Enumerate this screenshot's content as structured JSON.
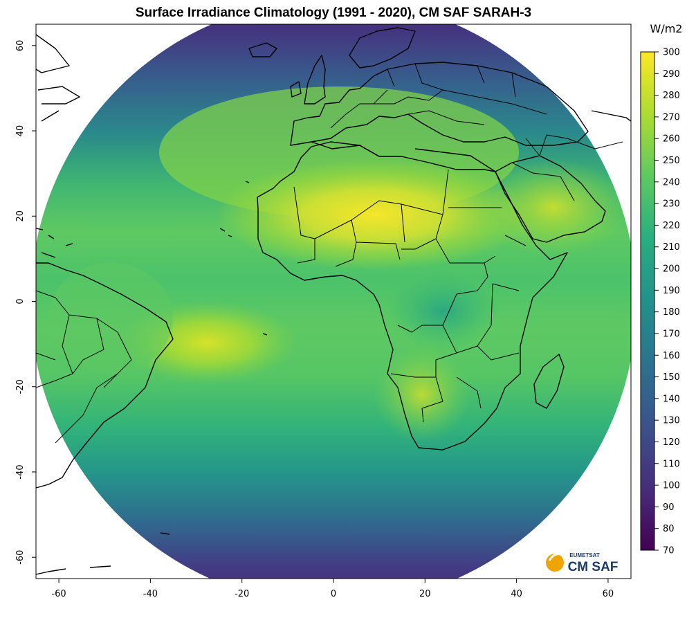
{
  "title": "Surface Irradiance Climatology (1991 - 2020),  CM SAF SARAH-3",
  "map": {
    "x_ticks": [
      "-60",
      "-40",
      "-20",
      "0",
      "20",
      "40",
      "60"
    ],
    "y_ticks": [
      "60",
      "40",
      "20",
      "0",
      "-20",
      "-40",
      "-60"
    ],
    "lon_range": [
      -65,
      65
    ],
    "lat_range": [
      -65,
      65
    ]
  },
  "colorbar": {
    "unit": "W/m2",
    "min": 70,
    "max": 300,
    "labels": [
      "300",
      "290",
      "280",
      "270",
      "260",
      "250",
      "240",
      "230",
      "220",
      "210",
      "200",
      "190",
      "180",
      "170",
      "160",
      "150",
      "140",
      "130",
      "120",
      "110",
      "100",
      "90",
      "80",
      "70"
    ],
    "colors": [
      "#440154",
      "#472d7b",
      "#3b528b",
      "#2c728e",
      "#21918c",
      "#28ae80",
      "#5ec962",
      "#addc30",
      "#fde725"
    ]
  },
  "logo": {
    "top_text": "EUMETSAT",
    "main_text": "CM SAF",
    "color": "#f0a400"
  }
}
